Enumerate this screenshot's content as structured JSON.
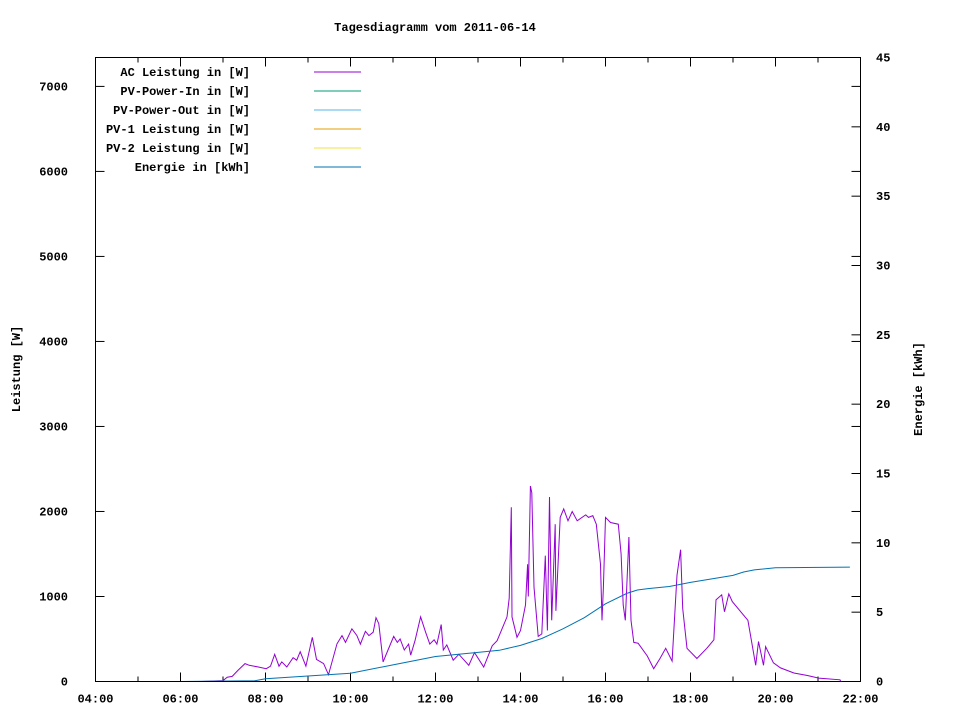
{
  "chart_data": {
    "type": "line",
    "title": "Tagesdiagramm vom 2011-06-14",
    "ylabel": "Leistung [W]",
    "y2label": "Energie [kWh]",
    "xlim": [
      "04:00",
      "22:00"
    ],
    "xticks": [
      "04:00",
      "06:00",
      "08:00",
      "10:00",
      "12:00",
      "14:00",
      "16:00",
      "18:00",
      "20:00",
      "22:00"
    ],
    "ylim": [
      0,
      7340
    ],
    "yticks": [
      0,
      1000,
      2000,
      3000,
      4000,
      5000,
      6000,
      7000
    ],
    "y2lim": [
      0,
      45
    ],
    "y2ticks": [
      0,
      5,
      10,
      15,
      20,
      25,
      30,
      35,
      40,
      45
    ],
    "grid": false,
    "legend_placement": "top-left",
    "series": [
      {
        "name": "AC Leistung in [W]",
        "axis": "y",
        "color": "#9400d3",
        "points": [
          [
            "06:00",
            0
          ],
          [
            "06:30",
            0
          ],
          [
            "07:00",
            10
          ],
          [
            "07:06",
            50
          ],
          [
            "07:13",
            60
          ],
          [
            "07:21",
            130
          ],
          [
            "07:31",
            210
          ],
          [
            "07:37",
            190
          ],
          [
            "07:50",
            170
          ],
          [
            "08:01",
            150
          ],
          [
            "08:07",
            180
          ],
          [
            "08:13",
            320
          ],
          [
            "08:19",
            180
          ],
          [
            "08:23",
            230
          ],
          [
            "08:30",
            170
          ],
          [
            "08:39",
            280
          ],
          [
            "08:44",
            250
          ],
          [
            "08:49",
            350
          ],
          [
            "08:57",
            180
          ],
          [
            "09:06",
            520
          ],
          [
            "09:12",
            260
          ],
          [
            "09:22",
            210
          ],
          [
            "09:29",
            80
          ],
          [
            "09:41",
            443
          ],
          [
            "09:48",
            540
          ],
          [
            "09:53",
            460
          ],
          [
            "10:02",
            620
          ],
          [
            "10:09",
            540
          ],
          [
            "10:14",
            440
          ],
          [
            "10:21",
            590
          ],
          [
            "10:26",
            540
          ],
          [
            "10:32",
            580
          ],
          [
            "10:36",
            750
          ],
          [
            "10:40",
            680
          ],
          [
            "10:46",
            230
          ],
          [
            "10:53",
            370
          ],
          [
            "11:01",
            530
          ],
          [
            "11:06",
            460
          ],
          [
            "11:10",
            500
          ],
          [
            "11:16",
            370
          ],
          [
            "11:22",
            440
          ],
          [
            "11:25",
            310
          ],
          [
            "11:31",
            480
          ],
          [
            "11:39",
            760
          ],
          [
            "11:46",
            580
          ],
          [
            "11:52",
            440
          ],
          [
            "11:58",
            490
          ],
          [
            "12:02",
            440
          ],
          [
            "12:08",
            670
          ],
          [
            "12:11",
            370
          ],
          [
            "12:16",
            430
          ],
          [
            "12:25",
            250
          ],
          [
            "12:33",
            320
          ],
          [
            "12:47",
            190
          ],
          [
            "12:55",
            340
          ],
          [
            "13:08",
            170
          ],
          [
            "13:20",
            420
          ],
          [
            "13:27",
            480
          ],
          [
            "13:41",
            760
          ],
          [
            "13:44",
            980
          ],
          [
            "13:47",
            2050
          ],
          [
            "13:48",
            760
          ],
          [
            "13:55",
            520
          ],
          [
            "14:00",
            600
          ],
          [
            "14:07",
            900
          ],
          [
            "14:10",
            1380
          ],
          [
            "14:11",
            1000
          ],
          [
            "14:14",
            2300
          ],
          [
            "14:16",
            2220
          ],
          [
            "14:19",
            1110
          ],
          [
            "14:25",
            530
          ],
          [
            "14:30",
            560
          ],
          [
            "14:35",
            1480
          ],
          [
            "14:38",
            600
          ],
          [
            "14:41",
            2170
          ],
          [
            "14:44",
            720
          ],
          [
            "14:49",
            1850
          ],
          [
            "14:50",
            830
          ],
          [
            "14:56",
            1930
          ],
          [
            "15:01",
            2030
          ],
          [
            "15:07",
            1890
          ],
          [
            "15:13",
            2000
          ],
          [
            "15:20",
            1890
          ],
          [
            "15:32",
            1960
          ],
          [
            "15:36",
            1930
          ],
          [
            "15:42",
            1950
          ],
          [
            "15:47",
            1850
          ],
          [
            "15:53",
            1380
          ],
          [
            "15:55",
            720
          ],
          [
            "15:57",
            1110
          ],
          [
            "16:00",
            1930
          ],
          [
            "16:07",
            1870
          ],
          [
            "16:18",
            1850
          ],
          [
            "16:22",
            1500
          ],
          [
            "16:25",
            900
          ],
          [
            "16:28",
            720
          ],
          [
            "16:33",
            1700
          ],
          [
            "16:36",
            720
          ],
          [
            "16:40",
            460
          ],
          [
            "16:46",
            450
          ],
          [
            "16:59",
            300
          ],
          [
            "17:08",
            150
          ],
          [
            "17:17",
            270
          ],
          [
            "17:25",
            390
          ],
          [
            "17:34",
            240
          ],
          [
            "17:41",
            1250
          ],
          [
            "17:46",
            1550
          ],
          [
            "17:49",
            860
          ],
          [
            "17:55",
            390
          ],
          [
            "18:09",
            270
          ],
          [
            "18:23",
            390
          ],
          [
            "18:33",
            490
          ],
          [
            "18:36",
            960
          ],
          [
            "18:44",
            1020
          ],
          [
            "18:48",
            820
          ],
          [
            "18:54",
            1030
          ],
          [
            "18:59",
            940
          ],
          [
            "19:15",
            780
          ],
          [
            "19:21",
            720
          ],
          [
            "19:32",
            190
          ],
          [
            "19:36",
            470
          ],
          [
            "19:43",
            190
          ],
          [
            "19:46",
            410
          ],
          [
            "19:57",
            220
          ],
          [
            "20:07",
            160
          ],
          [
            "20:26",
            100
          ],
          [
            "20:45",
            70
          ],
          [
            "21:01",
            40
          ],
          [
            "21:31",
            20
          ],
          [
            "21:32",
            0
          ],
          [
            "21:45",
            0
          ]
        ]
      },
      {
        "name": "PV-Power-In in [W]",
        "axis": "y",
        "color": "#009e73",
        "points": []
      },
      {
        "name": "PV-Power-Out in [W]",
        "axis": "y",
        "color": "#56b4e9",
        "points": []
      },
      {
        "name": "PV-1 Leistung in [W]",
        "axis": "y",
        "color": "#e69f00",
        "points": []
      },
      {
        "name": "PV-2 Leistung in [W]",
        "axis": "y",
        "color": "#f0e442",
        "points": []
      },
      {
        "name": "Energie in [kWh]",
        "axis": "y2",
        "color": "#0072b2",
        "points": [
          [
            "06:00",
            0
          ],
          [
            "07:45",
            0.05
          ],
          [
            "08:00",
            0.2
          ],
          [
            "09:00",
            0.4
          ],
          [
            "10:00",
            0.6
          ],
          [
            "11:00",
            1.2
          ],
          [
            "12:00",
            1.8
          ],
          [
            "13:00",
            2.1
          ],
          [
            "13:30",
            2.25
          ],
          [
            "14:00",
            2.6
          ],
          [
            "14:30",
            3.1
          ],
          [
            "15:00",
            3.8
          ],
          [
            "15:30",
            4.6
          ],
          [
            "16:00",
            5.6
          ],
          [
            "16:30",
            6.35
          ],
          [
            "16:45",
            6.6
          ],
          [
            "17:00",
            6.7
          ],
          [
            "17:30",
            6.85
          ],
          [
            "18:00",
            7.15
          ],
          [
            "18:30",
            7.4
          ],
          [
            "19:00",
            7.65
          ],
          [
            "19:15",
            7.9
          ],
          [
            "19:30",
            8.05
          ],
          [
            "20:00",
            8.2
          ],
          [
            "21:45",
            8.25
          ]
        ]
      }
    ]
  }
}
